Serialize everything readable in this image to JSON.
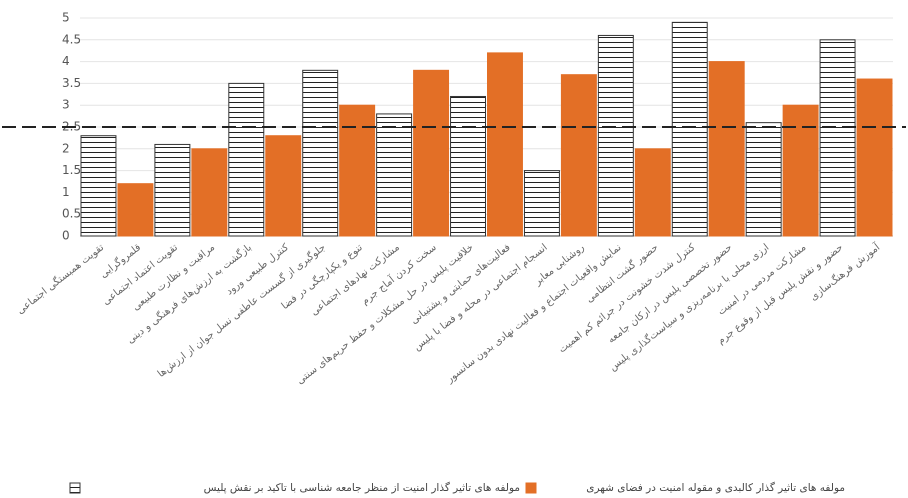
{
  "chart_data": {
    "type": "bar",
    "categories": [
      "تقویت همبستگی اجتماعی",
      "قلمروگرایی",
      "تقویت اعتماد اجتماعی",
      "مراقبت و نظارت طبیعی",
      "بازگشت به ارزش‌های فرهنگی و دینی",
      "کنترل طبیعی ورود",
      "جلوگیری از گسست عاطفی نسل جوان از ارزش‌ها",
      "تنوع و یکپارچگی در فضا",
      "مشارکت نهادهای اجتماعی",
      "سخت کردن آماج جرم",
      "خلاقیت پلیس در حل مشکلات و حفظ حریم‌های سنتی",
      "فعالیت‌های حمایتی و پشتیبانی",
      "انسجام اجتماعی در محله و فضا با پلیس",
      "روشنایی معابر",
      "نمایش واقعیات اجتماع و فعالیت نهادی بدون سانسور",
      "حضور گشت انتظامی",
      "کنترل شدت خشونت در جرائم کم اهمیت",
      "حضور تخصصی پلیس در ارکان جامعه",
      "ارزی محلی با برنامه‌ریزی و سیاست‌گذاری پلیس",
      "مشارکت مردمی در امنیت",
      "حضور و نقش پلیس قبل از وقوع جرم",
      "آموزش فرهنگ‌سازی"
    ],
    "series": [
      {
        "name": "مولفه های تاثیر گذار امنیت از منظر جامعه شناسی با تاکید بر نقش پلیس",
        "color": "#ffffff",
        "hatch": true,
        "values": [
          2.3,
          null,
          2.1,
          null,
          3.5,
          null,
          3.8,
          null,
          2.8,
          null,
          3.2,
          null,
          1.5,
          null,
          4.6,
          null,
          4.9,
          null,
          2.6,
          null,
          4.5,
          null
        ]
      },
      {
        "name": "مولفه های تاثیر گذار کالبدی و مقوله امنیت در فضای شهری",
        "color": "#e36f26",
        "hatch": false,
        "values": [
          null,
          1.2,
          null,
          2.0,
          null,
          2.3,
          null,
          3.0,
          null,
          3.8,
          null,
          4.2,
          null,
          3.7,
          null,
          2.0,
          null,
          4.0,
          null,
          3.0,
          null,
          3.6
        ]
      }
    ],
    "reference_line": 2.5,
    "ylim": [
      0,
      5
    ],
    "yticks": [
      0,
      0.5,
      1,
      1.5,
      2,
      2.5,
      3,
      3.5,
      4,
      4.5,
      5
    ],
    "grid": true
  }
}
